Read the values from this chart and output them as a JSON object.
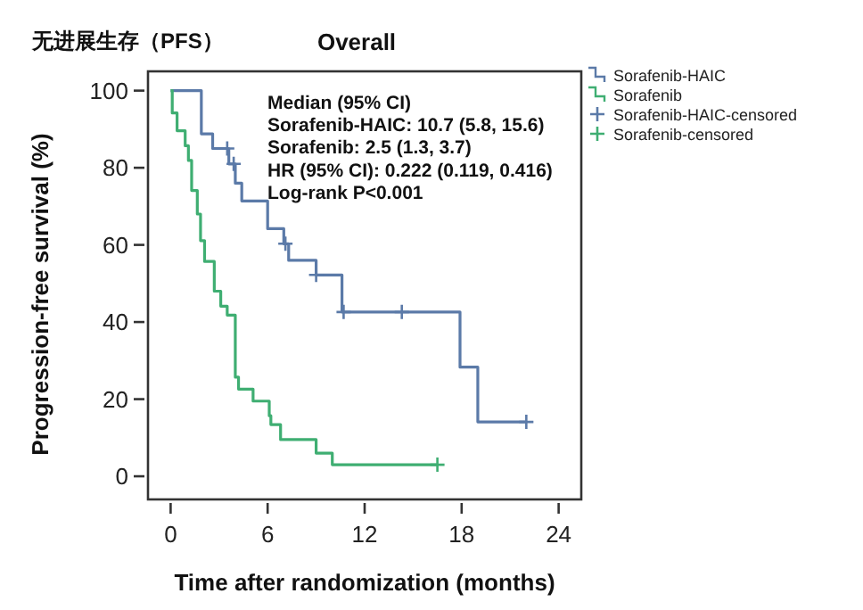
{
  "chart_data": {
    "type": "step",
    "title": "Overall",
    "subtitle": "无进展生存（PFS）",
    "xlabel": "Time after randomization (months)",
    "ylabel": "Progression-free survival (%)",
    "annotations": [
      "Median (95% CI)",
      "Sorafenib-HAIC: 10.7 (5.8, 15.6)",
      "Sorafenib: 2.5 (1.3, 3.7)",
      "HR (95% CI): 0.222 (0.119, 0.416)",
      "Log-rank P<0.001"
    ],
    "xlim": [
      -1.4,
      25.4
    ],
    "ylim": [
      -6,
      105
    ],
    "xticks": [
      0,
      6,
      12,
      18,
      24
    ],
    "yticks": [
      0,
      20,
      40,
      60,
      80,
      100
    ],
    "legend": "top right",
    "series": [
      {
        "name": "Sorafenib-HAIC",
        "color": "#5b7aa8",
        "x": [
          0,
          1.9,
          2.6,
          3.6,
          4.0,
          4.4,
          6.0,
          7.0,
          7.3,
          9.0,
          10.6,
          17.9,
          19.0,
          22.0
        ],
        "values": [
          100,
          88.8,
          85,
          81,
          76,
          71.4,
          64.2,
          60.3,
          56,
          52.2,
          42.6,
          28.3,
          14.1,
          14.1
        ]
      },
      {
        "name": "Sorafenib",
        "color": "#3fae72",
        "x": [
          0,
          0.1,
          0.4,
          0.9,
          1.1,
          1.3,
          1.65,
          1.85,
          2.1,
          2.7,
          3.1,
          3.5,
          4.0,
          4.2,
          5.1,
          6.1,
          6.2,
          6.8,
          9.0,
          10.0,
          16.5
        ],
        "values": [
          100,
          94.2,
          89.6,
          85.7,
          81.9,
          74.1,
          68,
          61.1,
          55.7,
          48,
          44.1,
          41.8,
          25.7,
          22.6,
          19.5,
          15.7,
          13.4,
          9.5,
          6.0,
          3.0,
          3.0
        ]
      },
      {
        "name": "Sorafenib-HAIC-censored",
        "type": "scatter",
        "marker": "cross",
        "color": "#5b7aa8",
        "x": [
          3.5,
          3.9,
          7.1,
          9.0,
          10.7,
          14.3,
          22.0
        ],
        "values": [
          85,
          81,
          60.3,
          52.2,
          42.6,
          42.6,
          14.1
        ]
      },
      {
        "name": "Sorafenib-censored",
        "type": "scatter",
        "marker": "cross",
        "color": "#3fae72",
        "x": [
          16.5
        ],
        "values": [
          3.0
        ]
      }
    ]
  }
}
